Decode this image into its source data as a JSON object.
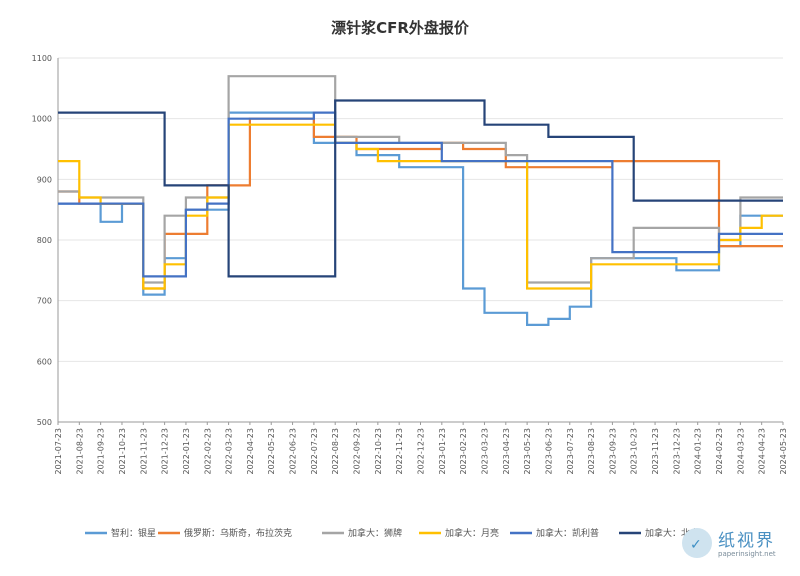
{
  "chart_data": {
    "type": "line",
    "title": "漂针浆CFR外盘报价",
    "ylim": [
      500,
      1100
    ],
    "yticks": [
      500,
      600,
      700,
      800,
      900,
      1000,
      1100
    ],
    "x_dates": [
      "2021-07-23",
      "2021-08-23",
      "2021-09-23",
      "2021-10-23",
      "2021-11-23",
      "2021-12-23",
      "2022-01-23",
      "2022-02-23",
      "2022-03-23",
      "2022-04-23",
      "2022-05-23",
      "2022-06-23",
      "2022-07-23",
      "2022-08-23",
      "2022-09-23",
      "2022-10-23",
      "2022-11-23",
      "2022-12-23",
      "2023-01-23",
      "2023-02-23",
      "2023-03-23",
      "2023-04-23",
      "2023-05-23",
      "2023-06-23",
      "2023-07-23",
      "2023-08-23",
      "2023-09-23",
      "2023-10-23",
      "2023-11-23",
      "2023-12-23",
      "2024-01-23",
      "2024-02-23",
      "2024-03-23",
      "2024-04-23",
      "2024-05-23"
    ],
    "series": [
      {
        "name": "智利：银星",
        "color": "#5b9bd5",
        "values": [
          860,
          860,
          830,
          860,
          710,
          770,
          850,
          850,
          1010,
          1010,
          1010,
          1010,
          960,
          960,
          940,
          940,
          920,
          920,
          920,
          720,
          680,
          680,
          660,
          670,
          690,
          770,
          770,
          770,
          770,
          750,
          750,
          790,
          840,
          840,
          840
        ]
      },
      {
        "name": "俄罗斯：乌斯奇，布拉茨克",
        "color": "#ed7d31",
        "values": [
          880,
          860,
          860,
          860,
          720,
          810,
          810,
          890,
          890,
          1000,
          1000,
          1000,
          970,
          970,
          950,
          950,
          950,
          950,
          960,
          950,
          950,
          920,
          920,
          920,
          920,
          920,
          930,
          930,
          930,
          930,
          930,
          790,
          790,
          790,
          790
        ]
      },
      {
        "name": "加拿大：狮牌",
        "color": "#a5a5a5",
        "values": [
          880,
          870,
          870,
          870,
          730,
          840,
          870,
          870,
          1070,
          1070,
          1070,
          1070,
          1070,
          970,
          970,
          970,
          960,
          960,
          960,
          960,
          960,
          940,
          730,
          730,
          730,
          770,
          770,
          820,
          820,
          820,
          820,
          800,
          870,
          870,
          870
        ]
      },
      {
        "name": "加拿大：月亮",
        "color": "#ffc000",
        "values": [
          930,
          870,
          860,
          860,
          720,
          760,
          840,
          870,
          990,
          990,
          990,
          990,
          990,
          960,
          950,
          930,
          930,
          930,
          930,
          930,
          930,
          930,
          720,
          720,
          720,
          760,
          760,
          760,
          760,
          760,
          760,
          800,
          820,
          840,
          840
        ]
      },
      {
        "name": "加拿大：凯利普",
        "color": "#4472c4",
        "values": [
          860,
          860,
          860,
          860,
          740,
          740,
          850,
          860,
          1000,
          1000,
          1000,
          1000,
          1010,
          960,
          960,
          960,
          960,
          960,
          930,
          930,
          930,
          930,
          930,
          930,
          930,
          930,
          780,
          780,
          780,
          780,
          780,
          810,
          810,
          810,
          810
        ]
      },
      {
        "name": "加拿大：北木",
        "color": "#264478",
        "values": [
          1010,
          1010,
          1010,
          1010,
          1010,
          890,
          890,
          890,
          740,
          740,
          740,
          740,
          740,
          1030,
          1030,
          1030,
          1030,
          1030,
          1030,
          1030,
          990,
          990,
          990,
          970,
          970,
          970,
          970,
          865,
          865,
          865,
          865,
          865,
          865,
          865,
          865
        ]
      }
    ]
  },
  "watermark": {
    "name": "纸视界",
    "url": "paperinsight.net"
  }
}
